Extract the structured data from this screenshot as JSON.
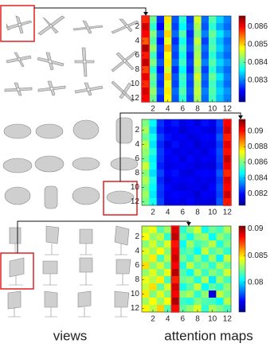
{
  "chart_data": [
    {
      "type": "heatmap",
      "xlim": [
        0.5,
        12.5
      ],
      "ylim": [
        0.5,
        12.5
      ],
      "xticks": [
        2,
        4,
        6,
        8,
        10,
        12
      ],
      "yticks": [
        2,
        4,
        6,
        8,
        10,
        12
      ],
      "clim": [
        0.0818,
        0.0866
      ],
      "cticks": [
        0.083,
        0.084,
        0.085,
        0.086
      ],
      "values": [
        [
          0.0858,
          0.0841,
          0.0826,
          0.0849,
          0.0828,
          0.0838,
          0.0827,
          0.0846,
          0.0829,
          0.084,
          0.0834,
          0.083
        ],
        [
          0.0862,
          0.0838,
          0.0824,
          0.0846,
          0.0827,
          0.0836,
          0.0828,
          0.0844,
          0.0828,
          0.0838,
          0.0832,
          0.0829
        ],
        [
          0.086,
          0.0842,
          0.0828,
          0.085,
          0.0829,
          0.084,
          0.0826,
          0.0842,
          0.083,
          0.0841,
          0.0835,
          0.0831
        ],
        [
          0.0856,
          0.084,
          0.0825,
          0.0847,
          0.0826,
          0.0837,
          0.0827,
          0.0845,
          0.0827,
          0.0839,
          0.0833,
          0.0829
        ],
        [
          0.0864,
          0.0843,
          0.0827,
          0.0851,
          0.0828,
          0.0839,
          0.0828,
          0.0843,
          0.0829,
          0.084,
          0.0834,
          0.083
        ],
        [
          0.0859,
          0.0839,
          0.0826,
          0.0848,
          0.0827,
          0.0837,
          0.0826,
          0.0844,
          0.0828,
          0.0838,
          0.0832,
          0.0829
        ],
        [
          0.0863,
          0.0842,
          0.0828,
          0.0849,
          0.0829,
          0.0839,
          0.0827,
          0.0845,
          0.083,
          0.084,
          0.0834,
          0.0831
        ],
        [
          0.0857,
          0.0838,
          0.0825,
          0.0846,
          0.0826,
          0.0836,
          0.0826,
          0.0843,
          0.0827,
          0.0838,
          0.0832,
          0.0829
        ],
        [
          0.0861,
          0.0841,
          0.0827,
          0.085,
          0.0828,
          0.0839,
          0.0828,
          0.0846,
          0.0829,
          0.0841,
          0.0835,
          0.083
        ],
        [
          0.0858,
          0.084,
          0.0826,
          0.0847,
          0.0827,
          0.0838,
          0.0827,
          0.0844,
          0.0828,
          0.0839,
          0.0833,
          0.0829
        ],
        [
          0.0862,
          0.0843,
          0.0828,
          0.0849,
          0.0829,
          0.084,
          0.0828,
          0.0845,
          0.083,
          0.084,
          0.0834,
          0.0831
        ],
        [
          0.086,
          0.0841,
          0.0826,
          0.0848,
          0.0828,
          0.0838,
          0.0827,
          0.0844,
          0.0829,
          0.0839,
          0.0833,
          0.083
        ]
      ]
    },
    {
      "type": "heatmap",
      "xlim": [
        0.5,
        12.5
      ],
      "ylim": [
        0.5,
        12.5
      ],
      "xticks": [
        2,
        4,
        6,
        8,
        10,
        12
      ],
      "yticks": [
        2,
        4,
        6,
        8,
        10,
        12
      ],
      "clim": [
        0.0805,
        0.0915
      ],
      "cticks": [
        0.082,
        0.084,
        0.086,
        0.088,
        0.09
      ],
      "values": [
        [
          0.086,
          0.0846,
          0.0824,
          0.0818,
          0.0821,
          0.0816,
          0.0819,
          0.0815,
          0.082,
          0.0817,
          0.0826,
          0.0902
        ],
        [
          0.0864,
          0.0842,
          0.0822,
          0.0816,
          0.0818,
          0.0814,
          0.0817,
          0.0818,
          0.0816,
          0.0815,
          0.0824,
          0.0906
        ],
        [
          0.0858,
          0.0848,
          0.0826,
          0.082,
          0.0817,
          0.0818,
          0.0815,
          0.0816,
          0.0819,
          0.0818,
          0.0828,
          0.0898
        ],
        [
          0.0866,
          0.0844,
          0.0823,
          0.0815,
          0.082,
          0.0816,
          0.0818,
          0.0814,
          0.0817,
          0.0816,
          0.0825,
          0.0904
        ],
        [
          0.0862,
          0.085,
          0.0825,
          0.0819,
          0.0816,
          0.0817,
          0.0816,
          0.0817,
          0.0815,
          0.0819,
          0.0827,
          0.09
        ],
        [
          0.0859,
          0.0845,
          0.0824,
          0.0817,
          0.0819,
          0.0815,
          0.0819,
          0.0816,
          0.0818,
          0.0817,
          0.0826,
          0.0908
        ],
        [
          0.0868,
          0.0847,
          0.0822,
          0.0816,
          0.0817,
          0.0818,
          0.0817,
          0.0815,
          0.0816,
          0.0815,
          0.0824,
          0.0903
        ],
        [
          0.0861,
          0.0843,
          0.0826,
          0.0818,
          0.082,
          0.0816,
          0.0815,
          0.0818,
          0.0819,
          0.0818,
          0.0828,
          0.0897
        ],
        [
          0.0865,
          0.0849,
          0.0823,
          0.0815,
          0.0818,
          0.0817,
          0.0818,
          0.0816,
          0.0817,
          0.0816,
          0.0825,
          0.0905
        ],
        [
          0.086,
          0.0846,
          0.0825,
          0.0819,
          0.0816,
          0.0815,
          0.0816,
          0.0817,
          0.0815,
          0.0819,
          0.0827,
          0.0901
        ],
        [
          0.0863,
          0.0844,
          0.0824,
          0.0817,
          0.0819,
          0.0818,
          0.0817,
          0.0814,
          0.0818,
          0.0817,
          0.0826,
          0.0907
        ],
        [
          0.0859,
          0.0848,
          0.0826,
          0.0816,
          0.0817,
          0.0816,
          0.0819,
          0.0816,
          0.0816,
          0.0815,
          0.0828,
          0.0899
        ]
      ]
    },
    {
      "type": "heatmap",
      "xlim": [
        0.5,
        12.5
      ],
      "ylim": [
        0.5,
        12.5
      ],
      "xticks": [
        2,
        4,
        6,
        8,
        10,
        12
      ],
      "yticks": [
        2,
        4,
        6,
        8,
        10,
        12
      ],
      "clim": [
        0.0745,
        0.0905
      ],
      "cticks": [
        0.08,
        0.085,
        0.09
      ],
      "values": [
        [
          0.0835,
          0.0842,
          0.0818,
          0.083,
          0.089,
          0.0812,
          0.0825,
          0.0838,
          0.0808,
          0.0822,
          0.0815,
          0.0832
        ],
        [
          0.0845,
          0.0828,
          0.0835,
          0.0812,
          0.0895,
          0.082,
          0.0808,
          0.0826,
          0.083,
          0.0805,
          0.0828,
          0.0818
        ],
        [
          0.0826,
          0.0838,
          0.0822,
          0.084,
          0.0882,
          0.0806,
          0.083,
          0.0815,
          0.0822,
          0.0834,
          0.081,
          0.0825
        ],
        [
          0.084,
          0.083,
          0.0845,
          0.0826,
          0.0888,
          0.0815,
          0.082,
          0.0805,
          0.0836,
          0.0818,
          0.0826,
          0.0812
        ],
        [
          0.0832,
          0.0848,
          0.0815,
          0.0835,
          0.0893,
          0.0824,
          0.0812,
          0.0828,
          0.081,
          0.083,
          0.0804,
          0.0836
        ],
        [
          0.085,
          0.0826,
          0.0838,
          0.082,
          0.0885,
          0.081,
          0.0835,
          0.0818,
          0.0825,
          0.0812,
          0.0832,
          0.082
        ],
        [
          0.0828,
          0.084,
          0.0824,
          0.0842,
          0.0897,
          0.0818,
          0.0806,
          0.0832,
          0.0814,
          0.0826,
          0.0818,
          0.0838
        ],
        [
          0.0842,
          0.0833,
          0.0847,
          0.0816,
          0.088,
          0.0822,
          0.0826,
          0.081,
          0.0832,
          0.0802,
          0.083,
          0.0815
        ],
        [
          0.0836,
          0.085,
          0.082,
          0.0838,
          0.0892,
          0.0808,
          0.0818,
          0.0836,
          0.0806,
          0.082,
          0.0812,
          0.0828
        ],
        [
          0.0848,
          0.0825,
          0.084,
          0.0824,
          0.0886,
          0.0826,
          0.0832,
          0.0812,
          0.0828,
          0.076,
          0.0835,
          0.0822
        ],
        [
          0.083,
          0.0845,
          0.0828,
          0.0845,
          0.0899,
          0.0814,
          0.081,
          0.0825,
          0.0818,
          0.0815,
          0.0806,
          0.0834
        ],
        [
          0.0846,
          0.0834,
          0.0852,
          0.0818,
          0.0884,
          0.082,
          0.0828,
          0.084,
          0.0812,
          0.0832,
          0.0824,
          0.0816
        ]
      ]
    }
  ],
  "captions": [
    "views",
    "attention maps"
  ]
}
